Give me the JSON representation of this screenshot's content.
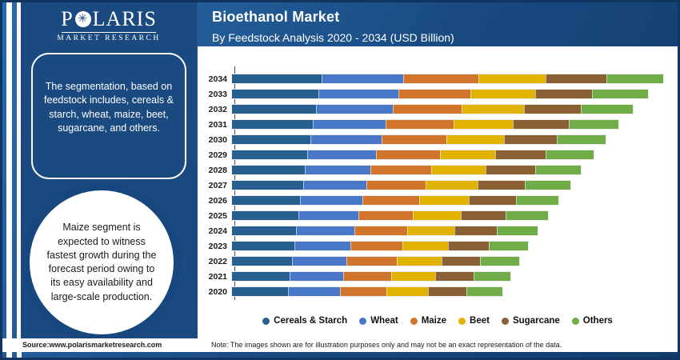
{
  "brand": {
    "logo_p": "P",
    "logo_star": "✳",
    "logo_rest": "LARIS",
    "logo_sub": "MARKET RESEARCH"
  },
  "header": {
    "title": "Bioethanol Market",
    "subtitle": "By Feedstock Analysis 2020 - 2034 (USD Billion)"
  },
  "sidebar": {
    "box_text": "The segmentation, based on feedstock includes, cereals & starch, wheat, maize, beet, sugarcane, and others.",
    "circle_text": "Maize segment is expected to witness fastest growth during the forecast period owing to its easy availability and large-scale production."
  },
  "footer": {
    "source": "Source:www.polarismarketresearch.com",
    "note": "Note: The images shown are for illustration purposes only and may not be an exact representation of the data."
  },
  "colors": {
    "navy": "#1a4a80",
    "ring_navy": "#17477e",
    "panel_white": "#ffffff"
  },
  "chart_data": {
    "type": "bar",
    "orientation": "horizontal",
    "stacked": true,
    "title": "Bioethanol Market By Feedstock Analysis 2020 - 2034 (USD Billion)",
    "value_unit": "USD Billion",
    "legend_position": "bottom",
    "grid": false,
    "categories": [
      "2034",
      "2033",
      "2032",
      "2031",
      "2030",
      "2029",
      "2028",
      "2027",
      "2026",
      "2025",
      "2024",
      "2023",
      "2022",
      "2021",
      "2020"
    ],
    "series": [
      {
        "name": "Cereals & Starch",
        "color": "#27608f",
        "values": [
          20.9,
          20.2,
          19.5,
          18.8,
          18.2,
          17.5,
          17.0,
          16.5,
          15.9,
          15.4,
          14.9,
          14.5,
          14.0,
          13.5,
          13.1
        ]
      },
      {
        "name": "Wheat",
        "color": "#4a78c8",
        "values": [
          19.1,
          18.6,
          17.9,
          17.1,
          16.6,
          16.1,
          15.3,
          14.9,
          14.5,
          14.0,
          13.6,
          13.1,
          12.7,
          12.4,
          12.0
        ]
      },
      {
        "name": "Maize",
        "color": "#d0752b",
        "values": [
          17.4,
          16.8,
          16.2,
          15.7,
          15.2,
          14.8,
          14.2,
          13.7,
          13.2,
          12.7,
          12.4,
          12.1,
          11.7,
          11.3,
          10.9
        ]
      },
      {
        "name": "Beet",
        "color": "#dfb300",
        "values": [
          15.7,
          15.0,
          14.5,
          13.9,
          13.4,
          12.9,
          12.6,
          12.1,
          11.6,
          11.3,
          10.9,
          10.7,
          10.4,
          10.1,
          9.7
        ]
      },
      {
        "name": "Sugarcane",
        "color": "#8a6134",
        "values": [
          14.1,
          13.4,
          13.2,
          13.0,
          12.3,
          11.8,
          11.6,
          11.1,
          10.9,
          10.4,
          10.0,
          9.4,
          9.1,
          9.1,
          8.9
        ]
      },
      {
        "name": "Others",
        "color": "#70ac47",
        "values": [
          13.3,
          13.0,
          12.1,
          11.6,
          11.4,
          11.1,
          10.6,
          10.5,
          10.0,
          9.9,
          9.4,
          9.1,
          9.0,
          8.5,
          8.4
        ]
      }
    ]
  }
}
